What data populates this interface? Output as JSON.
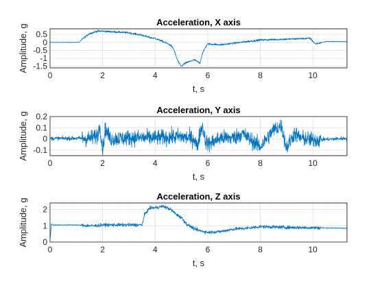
{
  "figure": {
    "background": "#ffffff",
    "series_color": "#0072bd"
  },
  "chart_data": [
    {
      "type": "line",
      "title": "Acceleration, X axis",
      "xlabel": "t, s",
      "ylabel": "Amplitude, g",
      "xlim": [
        0,
        11.3
      ],
      "ylim": [
        -1.6,
        0.85
      ],
      "xticks": [
        0,
        2,
        4,
        6,
        8,
        10
      ],
      "xtick_labels": [
        "0",
        "2",
        "4",
        "6",
        "8",
        "10"
      ],
      "yticks": [
        -1.5,
        -1,
        -0.5,
        0,
        0.5
      ],
      "ytick_labels": [
        "-1.5",
        "-1",
        "-0.5",
        "0",
        "0.5"
      ],
      "grid": true,
      "noise": 0.03,
      "series": [
        {
          "x": [
            0,
            1.1,
            1.3,
            1.5,
            1.8,
            2.0,
            2.5,
            3.0,
            3.5,
            3.8,
            4.0,
            4.3,
            4.5,
            4.6,
            4.7,
            4.8,
            4.9,
            5.0,
            5.1,
            5.3,
            5.5,
            5.7,
            5.8,
            5.9,
            6.0,
            6.5,
            7.0,
            7.5,
            8.0,
            9.0,
            9.9,
            10.1,
            10.5,
            11.3
          ],
          "y": [
            0,
            0,
            0.3,
            0.55,
            0.7,
            0.7,
            0.65,
            0.6,
            0.45,
            0.3,
            0.25,
            0.05,
            -0.1,
            -0.2,
            -0.4,
            -0.9,
            -1.3,
            -1.5,
            -1.35,
            -1.2,
            -1.1,
            -1.3,
            -0.7,
            -0.35,
            -0.1,
            -0.15,
            -0.05,
            0.05,
            0.15,
            0.2,
            0.25,
            -0.1,
            0.05,
            0.05
          ]
        }
      ]
    },
    {
      "type": "line",
      "title": "Acceleration, Y axis",
      "xlabel": "t, s",
      "ylabel": "Amplitude, g",
      "xlim": [
        0,
        11.3
      ],
      "ylim": [
        -0.15,
        0.2
      ],
      "xticks": [
        0,
        2,
        4,
        6,
        8,
        10
      ],
      "xtick_labels": [
        "0",
        "2",
        "4",
        "6",
        "8",
        "10"
      ],
      "yticks": [
        -0.1,
        0,
        0.1,
        0.2
      ],
      "ytick_labels": [
        "-0.1",
        "0",
        "0.1",
        "0.2"
      ],
      "grid": true,
      "noise": 0.035,
      "series": [
        {
          "x": [
            0,
            1.0,
            1.5,
            1.8,
            1.9,
            2.0,
            2.1,
            2.3,
            3.0,
            4.0,
            5.0,
            5.5,
            5.6,
            5.7,
            5.8,
            5.9,
            6.0,
            6.5,
            7.0,
            7.3,
            8.0,
            8.5,
            8.8,
            9.0,
            9.3,
            9.5,
            10.0,
            11.3
          ],
          "y": [
            0.005,
            0.005,
            0.005,
            0.03,
            0.12,
            -0.1,
            0.09,
            0.0,
            0.01,
            0.01,
            0.02,
            0.0,
            -0.08,
            0.05,
            0.12,
            0.0,
            -0.05,
            0.01,
            0.01,
            0.05,
            -0.07,
            0.08,
            0.12,
            -0.08,
            0.05,
            0.01,
            -0.01,
            0.005
          ]
        }
      ]
    },
    {
      "type": "line",
      "title": "Acceleration, Z axis",
      "xlabel": "t, s",
      "ylabel": "Amplitude, g",
      "xlim": [
        0,
        11.3
      ],
      "ylim": [
        0,
        2.4
      ],
      "xticks": [
        0,
        2,
        4,
        6,
        8,
        10
      ],
      "xtick_labels": [
        "0",
        "2",
        "4",
        "6",
        "8",
        "10"
      ],
      "yticks": [
        0,
        1,
        2
      ],
      "ytick_labels": [
        "0",
        "1",
        "2"
      ],
      "grid": true,
      "noise": 0.05,
      "series": [
        {
          "x": [
            0,
            0.05,
            0.1,
            1.0,
            1.5,
            1.7,
            2.0,
            3.0,
            3.5,
            3.6,
            3.8,
            4.0,
            4.3,
            4.6,
            4.8,
            5.0,
            5.2,
            5.5,
            5.7,
            6.0,
            6.5,
            7.0,
            7.5,
            8.0,
            9.0,
            10.0,
            11.3
          ],
          "y": [
            0.1,
            1.1,
            1.05,
            1.05,
            1.0,
            1.0,
            1.05,
            1.05,
            1.05,
            1.7,
            2.1,
            2.1,
            2.2,
            2.0,
            1.7,
            1.5,
            1.1,
            0.8,
            0.7,
            0.6,
            0.65,
            0.8,
            0.85,
            0.95,
            0.9,
            0.88,
            0.85
          ]
        }
      ]
    }
  ]
}
